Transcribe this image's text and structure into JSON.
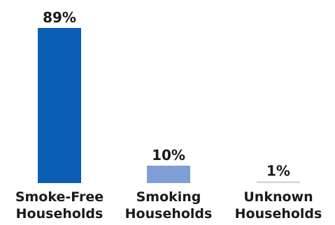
{
  "chart_data": {
    "type": "bar",
    "categories": [
      [
        "Smoke-Free",
        "Households"
      ],
      [
        "Smoking",
        "Households"
      ],
      [
        "Unknown",
        "Households"
      ]
    ],
    "values": [
      89,
      10,
      1
    ],
    "data_labels": [
      "89%",
      "10%",
      "1%"
    ],
    "colors": [
      "#0a5fb4",
      "#7f9fd4",
      "#d6d6d6"
    ],
    "ylim": [
      0,
      89
    ],
    "title": "",
    "xlabel": "",
    "ylabel": "",
    "grid": false,
    "legend": "none"
  }
}
